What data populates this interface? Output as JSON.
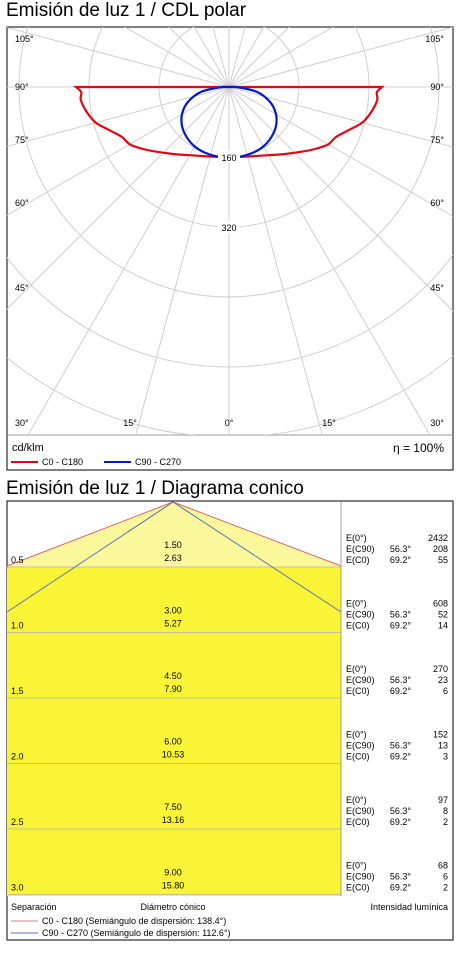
{
  "chart_data": [
    {
      "type": "polar",
      "title": "Emisión de luz 1 / CDL polar",
      "unit_label": "cd/klm",
      "efficiency": "η = 100%",
      "radial_ticks": [
        {
          "value": 160,
          "label": "160"
        },
        {
          "value": 320,
          "label": "320"
        }
      ],
      "radial_max": 480,
      "angle_labels": [
        "105°",
        "90°",
        "75°",
        "60°",
        "45°",
        "30°",
        "15°",
        "0°",
        "15°",
        "30°",
        "45°",
        "60°",
        "75°",
        "90°",
        "105°"
      ],
      "series": [
        {
          "name": "C0 - C180",
          "color": "#e30613",
          "angles": [
            0,
            10,
            20,
            30,
            40,
            50,
            55,
            60,
            65,
            70,
            75,
            80,
            85,
            88,
            90
          ],
          "values": [
            160,
            162,
            168,
            180,
            200,
            228,
            245,
            262,
            270,
            290,
            315,
            330,
            340,
            338,
            350
          ]
        },
        {
          "name": "C90 - C270",
          "color": "#0018d0",
          "angles": [
            0,
            10,
            20,
            30,
            40,
            50,
            60,
            70,
            80,
            88,
            90
          ],
          "values": [
            160,
            161,
            160,
            157,
            150,
            140,
            124,
            100,
            65,
            20,
            0
          ]
        }
      ]
    },
    {
      "type": "table",
      "title": "Emisión de luz 1 / Diagrama conico",
      "footer": {
        "separation": "Separación",
        "diameter": "Diámetro cónico",
        "intensity": "Intensidad lumínica"
      },
      "legend": [
        {
          "label": "C0 - C180 (Semiángulo de dispersión: 138.4°)",
          "color": "#e08080"
        },
        {
          "label": "C90 - C270 (Semiángulo de dispersión: 112.6°)",
          "color": "#5a6fb8"
        }
      ],
      "rows": [
        {
          "h": "0.5",
          "d1": "1.50",
          "d2": "2.63",
          "e0": "2432",
          "ec90a": "56.3°",
          "ec90": "208",
          "ec0a": "69.2°",
          "ec0": "55"
        },
        {
          "h": "1.0",
          "d1": "3.00",
          "d2": "5.27",
          "e0": "608",
          "ec90a": "56.3°",
          "ec90": "52",
          "ec0a": "69.2°",
          "ec0": "14"
        },
        {
          "h": "1.5",
          "d1": "4.50",
          "d2": "7.90",
          "e0": "270",
          "ec90a": "56.3°",
          "ec90": "23",
          "ec0a": "69.2°",
          "ec0": "6"
        },
        {
          "h": "2.0",
          "d1": "6.00",
          "d2": "10.53",
          "e0": "152",
          "ec90a": "56.3°",
          "ec90": "13",
          "ec0a": "69.2°",
          "ec0": "3"
        },
        {
          "h": "2.5",
          "d1": "7.50",
          "d2": "13.16",
          "e0": "97",
          "ec90a": "56.3°",
          "ec90": "8",
          "ec0a": "69.2°",
          "ec0": "2"
        },
        {
          "h": "3.0",
          "d1": "9.00",
          "d2": "15.80",
          "e0": "68",
          "ec90a": "56.3°",
          "ec90": "6",
          "ec0a": "69.2°",
          "ec0": "2"
        }
      ],
      "labels": {
        "e0": "E(0°)",
        "ec90": "E(C90)",
        "ec0": "E(C0)"
      }
    }
  ]
}
